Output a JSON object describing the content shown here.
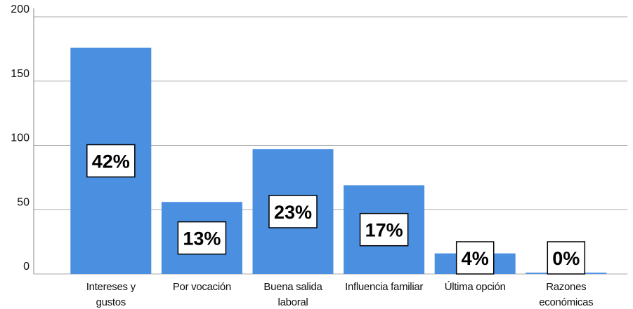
{
  "chart_data": {
    "type": "bar",
    "categories": [
      "Intereses y gustos",
      "Por vocación",
      "Buena salida laboral",
      "Influencia familiar",
      "Última opción",
      "Razones económicas"
    ],
    "values": [
      176,
      56,
      97,
      69,
      16,
      1
    ],
    "labels": [
      "42%",
      "13%",
      "23%",
      "17%",
      "4%",
      "0%"
    ],
    "color": "#4a8fe0",
    "ylim": [
      0,
      200
    ],
    "yticks": [
      0,
      50,
      100,
      150,
      200
    ],
    "grid": true
  }
}
